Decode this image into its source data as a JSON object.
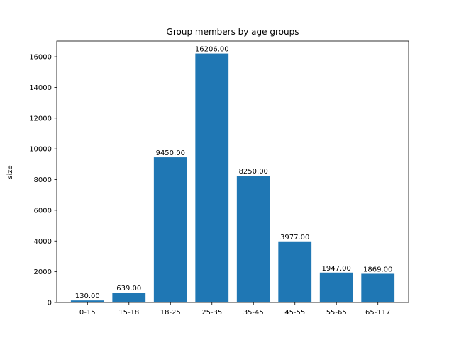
{
  "chart_data": {
    "type": "bar",
    "title": "Group members by age groups",
    "xlabel": "",
    "ylabel": "size",
    "categories": [
      "0-15",
      "15-18",
      "18-25",
      "25-35",
      "35-45",
      "45-55",
      "55-65",
      "65-117"
    ],
    "values": [
      130,
      639,
      9450,
      16206,
      8250,
      3977,
      1947,
      1869
    ],
    "value_labels": [
      "130.00",
      "639.00",
      "9450.00",
      "16206.00",
      "8250.00",
      "3977.00",
      "1947.00",
      "1869.00"
    ],
    "ylim": [
      0,
      17016.3
    ],
    "yticks": [
      0,
      2000,
      4000,
      6000,
      8000,
      10000,
      12000,
      14000,
      16000
    ],
    "ytick_labels": [
      "0",
      "2000",
      "4000",
      "6000",
      "8000",
      "10000",
      "12000",
      "14000",
      "16000"
    ],
    "grid": false,
    "bar_color": "#1f77b4"
  }
}
